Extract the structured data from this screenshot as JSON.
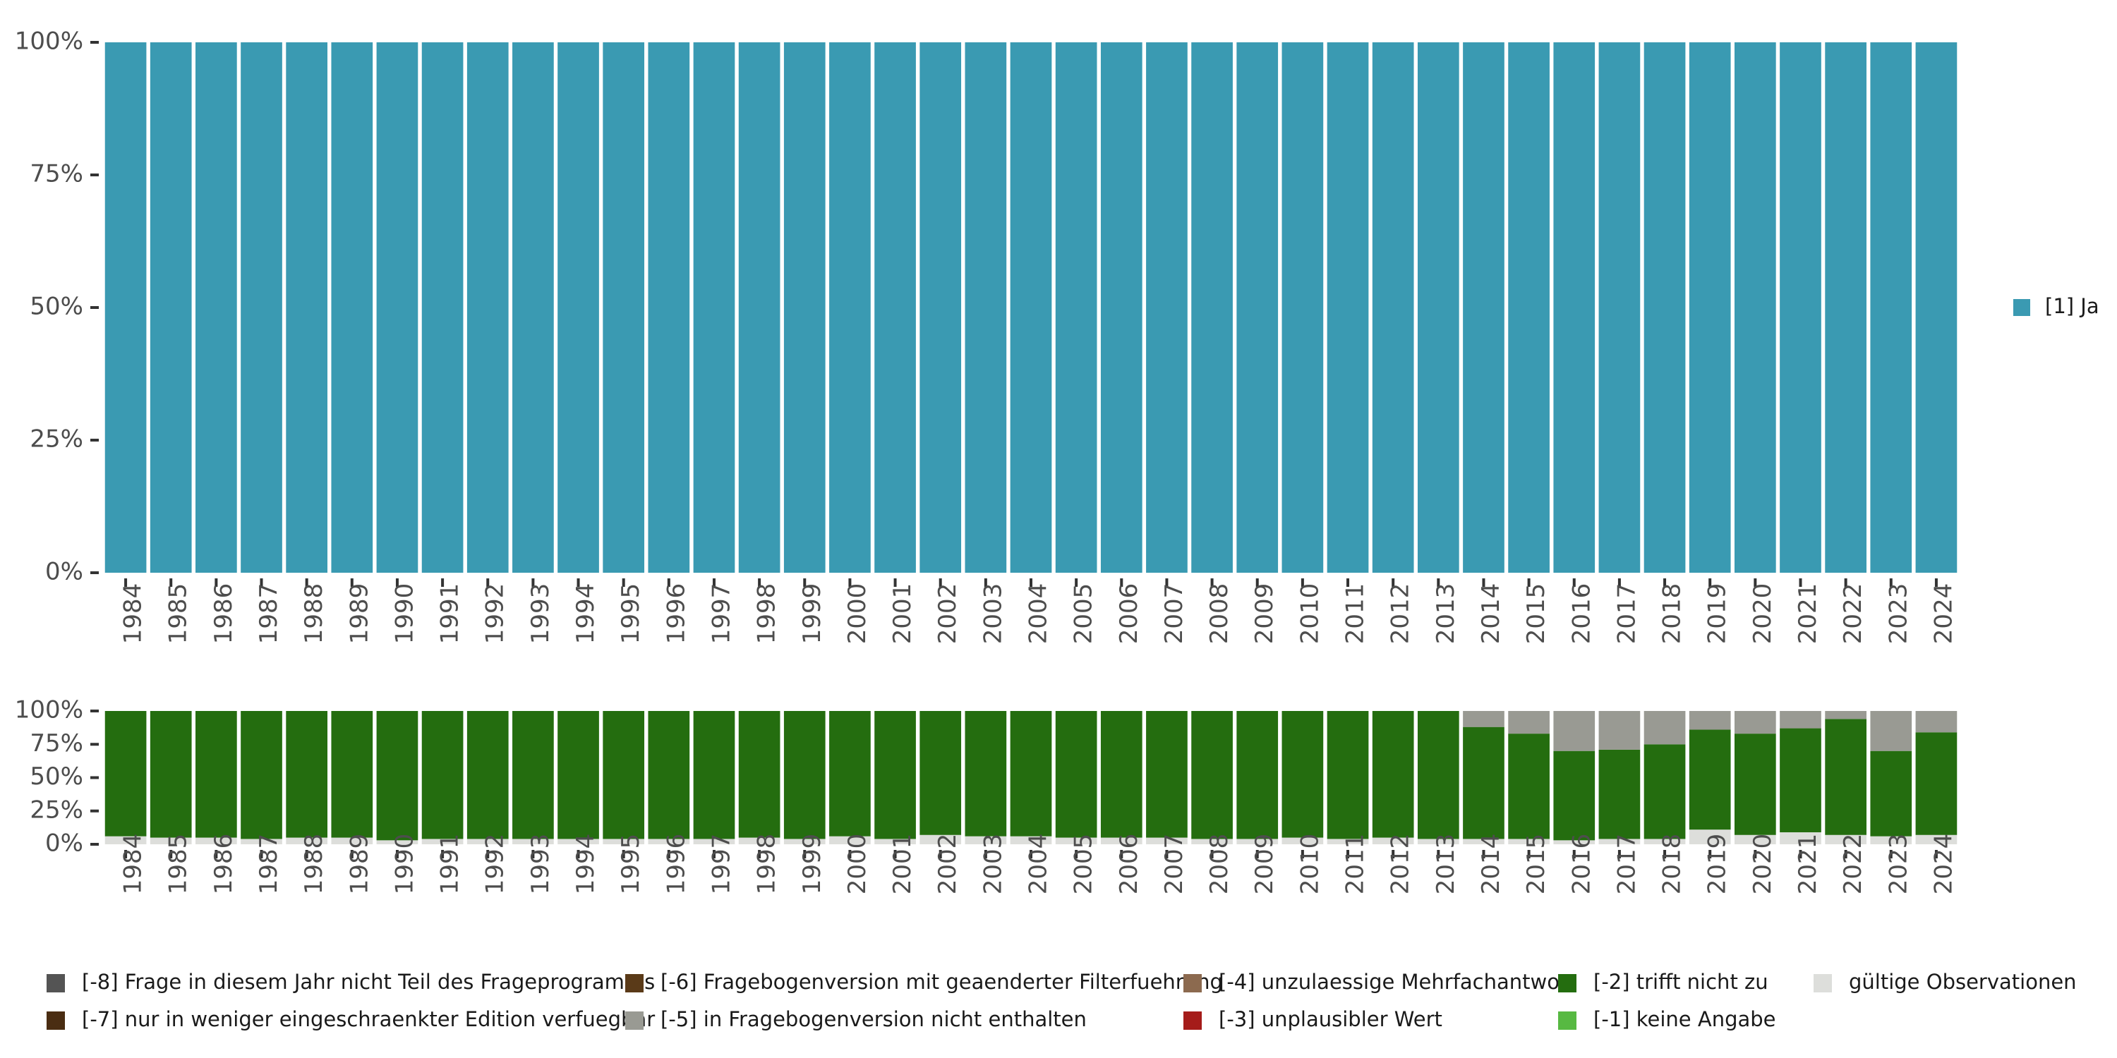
{
  "chart_data": [
    {
      "type": "bar",
      "stacked": true,
      "title": "",
      "xlabel": "",
      "ylabel": "",
      "ylim": [
        0,
        100
      ],
      "y_ticks": [
        "0%",
        "25%",
        "50%",
        "75%",
        "100%"
      ],
      "categories": [
        "1984",
        "1985",
        "1986",
        "1987",
        "1988",
        "1989",
        "1990",
        "1991",
        "1992",
        "1993",
        "1994",
        "1995",
        "1996",
        "1997",
        "1998",
        "1999",
        "2000",
        "2001",
        "2002",
        "2003",
        "2004",
        "2005",
        "2006",
        "2007",
        "2008",
        "2009",
        "2010",
        "2011",
        "2012",
        "2013",
        "2014",
        "2015",
        "2016",
        "2017",
        "2018",
        "2019",
        "2020",
        "2021",
        "2022",
        "2023",
        "2024"
      ],
      "series": [
        {
          "name": "[1] Ja",
          "color": "#3a9ab2",
          "values": [
            100,
            100,
            100,
            100,
            100,
            100,
            100,
            100,
            100,
            100,
            100,
            100,
            100,
            100,
            100,
            100,
            100,
            100,
            100,
            100,
            100,
            100,
            100,
            100,
            100,
            100,
            100,
            100,
            100,
            100,
            100,
            100,
            100,
            100,
            100,
            100,
            100,
            100,
            100,
            100,
            100
          ]
        }
      ],
      "legend": {
        "position": "right"
      }
    },
    {
      "type": "bar",
      "stacked": true,
      "title": "",
      "xlabel": "",
      "ylabel": "",
      "ylim": [
        0,
        100
      ],
      "y_ticks": [
        "0%",
        "25%",
        "50%",
        "75%",
        "100%"
      ],
      "categories": [
        "1984",
        "1985",
        "1986",
        "1987",
        "1988",
        "1989",
        "1990",
        "1991",
        "1992",
        "1993",
        "1994",
        "1995",
        "1996",
        "1997",
        "1998",
        "1999",
        "2000",
        "2001",
        "2002",
        "2003",
        "2004",
        "2005",
        "2006",
        "2007",
        "2008",
        "2009",
        "2010",
        "2011",
        "2012",
        "2013",
        "2014",
        "2015",
        "2016",
        "2017",
        "2018",
        "2019",
        "2020",
        "2021",
        "2022",
        "2023",
        "2024"
      ],
      "series": [
        {
          "name": "gültige Observationen",
          "color": "#dddedb",
          "values": [
            6,
            5,
            5,
            4,
            5,
            5,
            3,
            4,
            4,
            4,
            4,
            4,
            4,
            4,
            5,
            4,
            6,
            4,
            7,
            6,
            6,
            5,
            5,
            5,
            4,
            4,
            5,
            4,
            5,
            4,
            4,
            4,
            3,
            4,
            4,
            11,
            7,
            9,
            7,
            6,
            7
          ]
        },
        {
          "name": "[-2] trifft nicht zu",
          "color": "#246d0f",
          "values": [
            94,
            95,
            95,
            96,
            95,
            95,
            97,
            96,
            96,
            96,
            96,
            96,
            96,
            96,
            95,
            96,
            94,
            96,
            93,
            94,
            94,
            95,
            95,
            95,
            96,
            96,
            95,
            96,
            95,
            96,
            84,
            79,
            67,
            67,
            71,
            75,
            76,
            78,
            87,
            64,
            77
          ]
        },
        {
          "name": "[-5] in Fragebogenversion nicht enthalten",
          "color": "#999a93",
          "values": [
            0,
            0,
            0,
            0,
            0,
            0,
            0,
            0,
            0,
            0,
            0,
            0,
            0,
            0,
            0,
            0,
            0,
            0,
            0,
            0,
            0,
            0,
            0,
            0,
            0,
            0,
            0,
            0,
            0,
            0,
            12,
            17,
            30,
            29,
            25,
            14,
            17,
            13,
            6,
            30,
            16
          ]
        }
      ],
      "legend": {
        "position": "bottom",
        "entries": [
          {
            "label": "[-8] Frage in diesem Jahr nicht Teil des Frageprogramms",
            "color": "#545454"
          },
          {
            "label": "[-7] nur in weniger eingeschraenkter Edition verfuegbar",
            "color": "#4a2d12"
          },
          {
            "label": "[-6] Fragebogenversion mit geaenderter Filterfuehrung",
            "color": "#5a3a18"
          },
          {
            "label": "[-5] in Fragebogenversion nicht enthalten",
            "color": "#999a93"
          },
          {
            "label": "[-4] unzulaessige Mehrfachantwort",
            "color": "#8c6a4f"
          },
          {
            "label": "[-3] unplausibler Wert",
            "color": "#a51c1a"
          },
          {
            "label": "[-2] trifft nicht zu",
            "color": "#246d0f"
          },
          {
            "label": "[-1] keine Angabe",
            "color": "#57b942"
          },
          {
            "label": "gültige Observationen",
            "color": "#dddedb"
          }
        ]
      }
    }
  ]
}
